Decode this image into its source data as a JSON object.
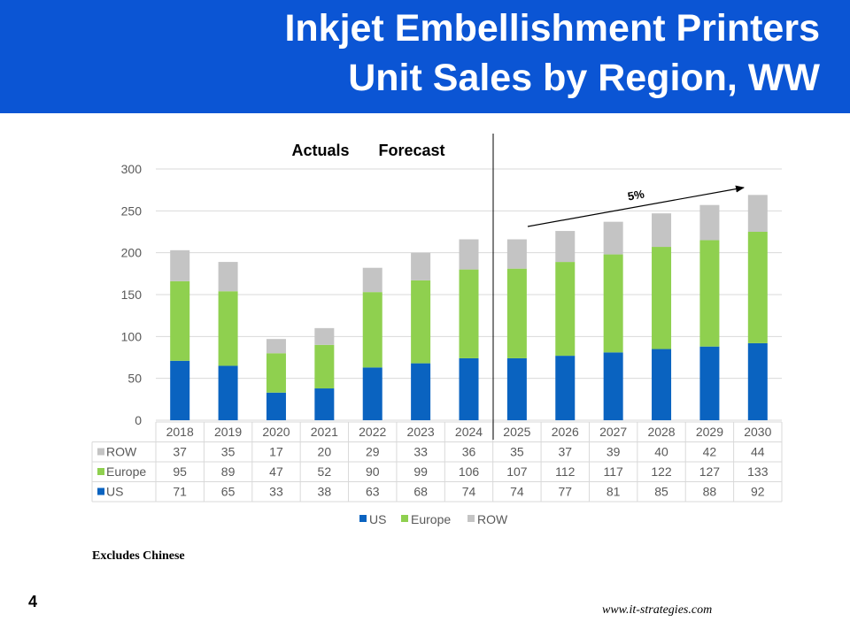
{
  "slide": {
    "title_line1": "Inkjet Embellishment Printers",
    "title_line2": "Unit Sales by Region, WW",
    "footnote": "Excludes Chinese",
    "page_number": "4",
    "website": "www.it-strategies.com"
  },
  "chart_data": {
    "type": "bar",
    "stacked": true,
    "title": "",
    "section_labels": [
      "Actuals",
      "Forecast"
    ],
    "annotation": "5%",
    "categories": [
      "2018",
      "2019",
      "2020",
      "2021",
      "2022",
      "2023",
      "2024",
      "2025",
      "2026",
      "2027",
      "2028",
      "2029",
      "2030"
    ],
    "series": [
      {
        "name": "US",
        "color": "#0a63c0",
        "values": [
          71,
          65,
          33,
          38,
          63,
          68,
          74,
          74,
          77,
          81,
          85,
          88,
          92
        ]
      },
      {
        "name": "Europe",
        "color": "#8fd04f",
        "values": [
          95,
          89,
          47,
          52,
          90,
          99,
          106,
          107,
          112,
          117,
          122,
          127,
          133
        ]
      },
      {
        "name": "ROW",
        "color": "#c4c4c4",
        "values": [
          37,
          35,
          17,
          20,
          29,
          33,
          36,
          35,
          37,
          39,
          40,
          42,
          44
        ]
      }
    ],
    "ylim": [
      0,
      300
    ],
    "yticks": [
      0,
      50,
      100,
      150,
      200,
      250,
      300
    ],
    "xlabel": "",
    "ylabel": "",
    "grid": true,
    "legend": "bottom",
    "data_table": true
  }
}
